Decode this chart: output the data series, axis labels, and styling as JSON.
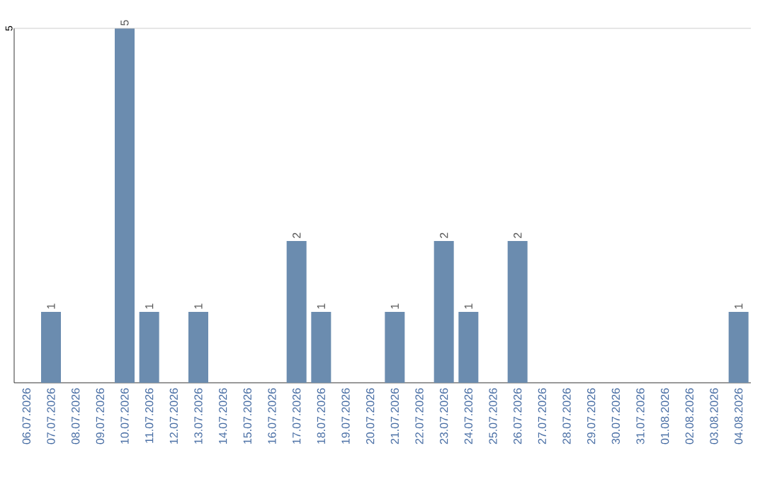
{
  "chart_data": {
    "type": "bar",
    "categories": [
      "06.07.2026",
      "07.07.2026",
      "08.07.2026",
      "09.07.2026",
      "10.07.2026",
      "11.07.2026",
      "12.07.2026",
      "13.07.2026",
      "14.07.2026",
      "15.07.2026",
      "16.07.2026",
      "17.07.2026",
      "18.07.2026",
      "19.07.2026",
      "20.07.2026",
      "21.07.2026",
      "22.07.2026",
      "23.07.2026",
      "24.07.2026",
      "25.07.2026",
      "26.07.2026",
      "27.07.2026",
      "28.07.2026",
      "29.07.2026",
      "30.07.2026",
      "31.07.2026",
      "01.08.2026",
      "02.08.2026",
      "03.08.2026",
      "04.08.2026"
    ],
    "values": [
      0,
      1,
      0,
      0,
      5,
      1,
      0,
      1,
      0,
      0,
      0,
      2,
      1,
      0,
      0,
      1,
      0,
      2,
      1,
      0,
      2,
      0,
      0,
      0,
      0,
      0,
      0,
      0,
      0,
      1
    ],
    "value_labels": [
      null,
      "1",
      null,
      null,
      "5",
      "1",
      null,
      "1",
      null,
      null,
      null,
      "2",
      "1",
      null,
      null,
      "1",
      null,
      "2",
      "1",
      null,
      "2",
      null,
      null,
      null,
      null,
      null,
      null,
      null,
      null,
      "1"
    ],
    "color": "#6b8caf",
    "ylim": [
      0,
      5
    ],
    "yticks": [
      5
    ]
  }
}
